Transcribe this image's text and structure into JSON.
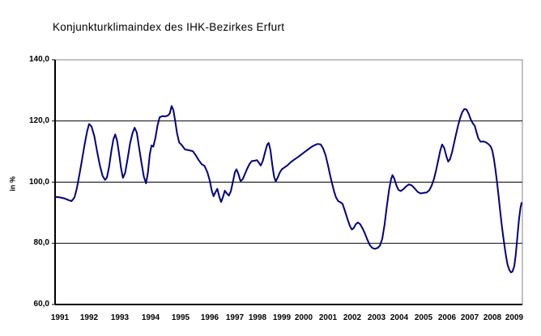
{
  "title": "Konjunkturklimaindex des IHK-Bezirkes Erfurt",
  "colors": {
    "line": "#000080",
    "gridline": "#000000",
    "plot_border": "#848484",
    "axis": "#000000",
    "background": "#FFFFFF",
    "text": "#000000"
  },
  "y_axis": {
    "label": "in %",
    "tick_labels": [
      "140,0",
      "120,0",
      "100,0",
      "80,0",
      "60,0"
    ],
    "tick_values": [
      140,
      120,
      100,
      80,
      60
    ],
    "min": 60,
    "max": 140
  },
  "x_axis": {
    "tick_labels": [
      "1991",
      "1992",
      "1993",
      "1994",
      "1995",
      "1996",
      "1997",
      "1998",
      "1999",
      "2000",
      "2001",
      "2002",
      "2003",
      "2004",
      "2005",
      "2006",
      "2007",
      "2008",
      "2009"
    ]
  },
  "chart_data": {
    "type": "line",
    "title": "Konjunkturklimaindex des IHK-Bezirkes Erfurt",
    "xlabel": "",
    "ylabel": "in %",
    "ylim": [
      60,
      140
    ],
    "x_range": [
      "1991",
      "2009"
    ],
    "grid": "horizontal gridlines at 80, 100, 120; chart border at top (140) and right in gray",
    "legend": "none",
    "series_name": "Konjunkturklimaindex",
    "x_unit": "decimal year",
    "points": [
      [
        1990.85,
        95.2
      ],
      [
        1991.0,
        95.0
      ],
      [
        1991.15,
        94.7
      ],
      [
        1991.3,
        94.1
      ],
      [
        1991.4,
        93.8
      ],
      [
        1991.5,
        95.0
      ],
      [
        1991.58,
        98.0
      ],
      [
        1991.67,
        102.5
      ],
      [
        1991.76,
        107.5
      ],
      [
        1991.85,
        112.5
      ],
      [
        1991.93,
        116.5
      ],
      [
        1992.0,
        119.0
      ],
      [
        1992.08,
        118.2
      ],
      [
        1992.17,
        115.0
      ],
      [
        1992.26,
        110.0
      ],
      [
        1992.35,
        105.5
      ],
      [
        1992.44,
        102.0
      ],
      [
        1992.52,
        100.7
      ],
      [
        1992.58,
        101.5
      ],
      [
        1992.65,
        105.0
      ],
      [
        1992.72,
        110.0
      ],
      [
        1992.79,
        114.0
      ],
      [
        1992.85,
        115.6
      ],
      [
        1992.91,
        113.5
      ],
      [
        1992.97,
        109.5
      ],
      [
        1993.04,
        104.5
      ],
      [
        1993.1,
        101.4
      ],
      [
        1993.17,
        103.0
      ],
      [
        1993.25,
        107.5
      ],
      [
        1993.33,
        112.5
      ],
      [
        1993.41,
        116.0
      ],
      [
        1993.48,
        117.8
      ],
      [
        1993.55,
        116.2
      ],
      [
        1993.62,
        111.5
      ],
      [
        1993.7,
        106.5
      ],
      [
        1993.78,
        101.8
      ],
      [
        1993.85,
        99.6
      ],
      [
        1993.91,
        103.0
      ],
      [
        1993.97,
        109.0
      ],
      [
        1994.03,
        112.0
      ],
      [
        1994.09,
        111.6
      ],
      [
        1994.16,
        114.5
      ],
      [
        1994.23,
        118.5
      ],
      [
        1994.3,
        121.2
      ],
      [
        1994.4,
        121.6
      ],
      [
        1994.5,
        121.5
      ],
      [
        1994.58,
        121.8
      ],
      [
        1994.64,
        122.5
      ],
      [
        1994.7,
        124.9
      ],
      [
        1994.76,
        123.5
      ],
      [
        1994.82,
        120.0
      ],
      [
        1994.88,
        116.0
      ],
      [
        1994.95,
        113.0
      ],
      [
        1995.05,
        112.0
      ],
      [
        1995.15,
        110.7
      ],
      [
        1995.3,
        110.4
      ],
      [
        1995.42,
        110.1
      ],
      [
        1995.52,
        108.8
      ],
      [
        1995.62,
        107.2
      ],
      [
        1995.72,
        105.9
      ],
      [
        1995.82,
        105.3
      ],
      [
        1995.92,
        103.2
      ],
      [
        1996.0,
        100.5
      ],
      [
        1996.08,
        97.2
      ],
      [
        1996.15,
        95.4
      ],
      [
        1996.22,
        96.6
      ],
      [
        1996.3,
        97.8
      ],
      [
        1996.38,
        95.2
      ],
      [
        1996.45,
        93.5
      ],
      [
        1996.53,
        95.2
      ],
      [
        1996.6,
        97.2
      ],
      [
        1996.68,
        96.3
      ],
      [
        1996.76,
        95.6
      ],
      [
        1996.84,
        97.0
      ],
      [
        1996.92,
        100.0
      ],
      [
        1997.0,
        103.2
      ],
      [
        1997.07,
        104.2
      ],
      [
        1997.15,
        102.8
      ],
      [
        1997.25,
        100.3
      ],
      [
        1997.35,
        101.0
      ],
      [
        1997.45,
        102.8
      ],
      [
        1997.55,
        104.5
      ],
      [
        1997.65,
        106.0
      ],
      [
        1997.75,
        106.9
      ],
      [
        1997.88,
        107.0
      ],
      [
        1997.97,
        107.2
      ],
      [
        1998.06,
        106.3
      ],
      [
        1998.13,
        105.4
      ],
      [
        1998.22,
        107.0
      ],
      [
        1998.31,
        109.8
      ],
      [
        1998.4,
        112.3
      ],
      [
        1998.46,
        112.8
      ],
      [
        1998.53,
        110.5
      ],
      [
        1998.61,
        105.5
      ],
      [
        1998.68,
        101.8
      ],
      [
        1998.75,
        100.2
      ],
      [
        1998.83,
        101.5
      ],
      [
        1998.92,
        103.2
      ],
      [
        1999.0,
        104.2
      ],
      [
        1999.12,
        104.8
      ],
      [
        1999.26,
        105.5
      ],
      [
        1999.4,
        106.5
      ],
      [
        1999.55,
        107.3
      ],
      [
        1999.7,
        108.0
      ],
      [
        1999.85,
        108.8
      ],
      [
        2000.0,
        109.6
      ],
      [
        2000.15,
        110.5
      ],
      [
        2000.3,
        111.4
      ],
      [
        2000.45,
        112.1
      ],
      [
        2000.58,
        112.5
      ],
      [
        2000.7,
        112.3
      ],
      [
        2000.8,
        111.0
      ],
      [
        2000.9,
        108.8
      ],
      [
        2001.0,
        105.5
      ],
      [
        2001.08,
        102.5
      ],
      [
        2001.17,
        99.5
      ],
      [
        2001.25,
        97.0
      ],
      [
        2001.33,
        95.0
      ],
      [
        2001.42,
        93.8
      ],
      [
        2001.52,
        93.4
      ],
      [
        2001.6,
        92.9
      ],
      [
        2001.7,
        90.5
      ],
      [
        2001.8,
        88.0
      ],
      [
        2001.9,
        85.7
      ],
      [
        2001.98,
        84.5
      ],
      [
        2002.06,
        85.0
      ],
      [
        2002.15,
        86.3
      ],
      [
        2002.23,
        86.8
      ],
      [
        2002.32,
        86.3
      ],
      [
        2002.42,
        84.9
      ],
      [
        2002.52,
        83.2
      ],
      [
        2002.62,
        81.2
      ],
      [
        2002.72,
        79.4
      ],
      [
        2002.82,
        78.5
      ],
      [
        2002.93,
        78.2
      ],
      [
        2003.05,
        78.5
      ],
      [
        2003.15,
        79.3
      ],
      [
        2003.25,
        81.5
      ],
      [
        2003.35,
        86.0
      ],
      [
        2003.45,
        92.0
      ],
      [
        2003.55,
        97.5
      ],
      [
        2003.64,
        101.0
      ],
      [
        2003.7,
        102.3
      ],
      [
        2003.78,
        101.2
      ],
      [
        2003.87,
        99.0
      ],
      [
        2003.96,
        97.5
      ],
      [
        2004.06,
        97.1
      ],
      [
        2004.17,
        97.7
      ],
      [
        2004.28,
        98.6
      ],
      [
        2004.4,
        99.3
      ],
      [
        2004.52,
        98.9
      ],
      [
        2004.64,
        97.9
      ],
      [
        2004.76,
        96.8
      ],
      [
        2004.88,
        96.3
      ],
      [
        2005.0,
        96.5
      ],
      [
        2005.12,
        96.6
      ],
      [
        2005.24,
        97.3
      ],
      [
        2005.34,
        98.8
      ],
      [
        2005.44,
        101.0
      ],
      [
        2005.53,
        103.8
      ],
      [
        2005.62,
        107.0
      ],
      [
        2005.71,
        110.3
      ],
      [
        2005.79,
        112.3
      ],
      [
        2005.88,
        111.2
      ],
      [
        2005.97,
        108.5
      ],
      [
        2006.05,
        106.7
      ],
      [
        2006.13,
        107.5
      ],
      [
        2006.22,
        109.8
      ],
      [
        2006.31,
        112.8
      ],
      [
        2006.4,
        115.8
      ],
      [
        2006.49,
        118.6
      ],
      [
        2006.58,
        121.0
      ],
      [
        2006.67,
        122.9
      ],
      [
        2006.76,
        123.9
      ],
      [
        2006.86,
        123.7
      ],
      [
        2006.95,
        122.4
      ],
      [
        2007.04,
        120.6
      ],
      [
        2007.13,
        119.3
      ],
      [
        2007.22,
        118.4
      ],
      [
        2007.3,
        116.3
      ],
      [
        2007.38,
        114.3
      ],
      [
        2007.48,
        113.2
      ],
      [
        2007.6,
        113.3
      ],
      [
        2007.72,
        113.0
      ],
      [
        2007.83,
        112.4
      ],
      [
        2007.93,
        111.6
      ],
      [
        2008.0,
        110.2
      ],
      [
        2008.07,
        107.5
      ],
      [
        2008.14,
        104.0
      ],
      [
        2008.21,
        100.0
      ],
      [
        2008.28,
        95.5
      ],
      [
        2008.35,
        91.0
      ],
      [
        2008.42,
        86.5
      ],
      [
        2008.49,
        82.5
      ],
      [
        2008.56,
        78.8
      ],
      [
        2008.63,
        75.5
      ],
      [
        2008.7,
        72.8
      ],
      [
        2008.78,
        71.2
      ],
      [
        2008.85,
        70.5
      ],
      [
        2008.92,
        70.8
      ],
      [
        2009.0,
        72.5
      ],
      [
        2009.07,
        76.5
      ],
      [
        2009.14,
        82.0
      ],
      [
        2009.21,
        87.5
      ],
      [
        2009.28,
        91.5
      ],
      [
        2009.33,
        93.2
      ]
    ]
  }
}
